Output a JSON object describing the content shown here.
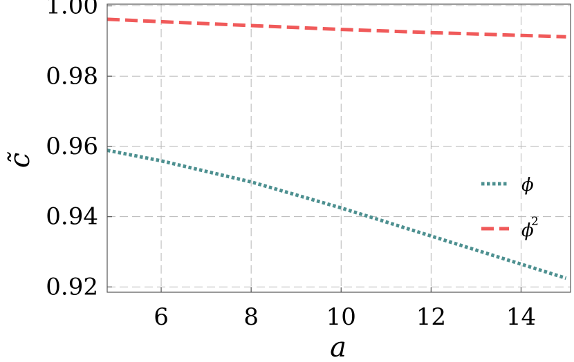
{
  "chart_data": {
    "type": "line",
    "xlabel": "a",
    "ylabel": "c̃",
    "xlim": [
      4.8,
      15.1
    ],
    "ylim": [
      0.9185,
      1.0005
    ],
    "xticks": [
      6,
      8,
      10,
      12,
      14
    ],
    "xtick_labels": [
      "6",
      "8",
      "10",
      "12",
      "14"
    ],
    "yticks": [
      0.92,
      0.94,
      0.96,
      0.98,
      1.0
    ],
    "ytick_labels": [
      "0.92",
      "0.94",
      "0.96",
      "0.98",
      "1.00"
    ],
    "grid": true,
    "legend_position": "right",
    "series": [
      {
        "name": "ϕ",
        "color": "#4d9090",
        "style": "dotted",
        "x": [
          4.8,
          6,
          8,
          10,
          12,
          14,
          15
        ],
        "y": [
          0.9589,
          0.9559,
          0.9499,
          0.9425,
          0.9345,
          0.9265,
          0.9225
        ]
      },
      {
        "name": "ϕ2",
        "legend_text": "ϕ",
        "legend_superscript": "2",
        "color": "#f05a5a",
        "style": "dashed",
        "x": [
          4.8,
          6,
          8,
          10,
          12,
          14,
          15
        ],
        "y": [
          0.9962,
          0.9955,
          0.9944,
          0.9933,
          0.9924,
          0.9916,
          0.9912
        ]
      }
    ]
  }
}
